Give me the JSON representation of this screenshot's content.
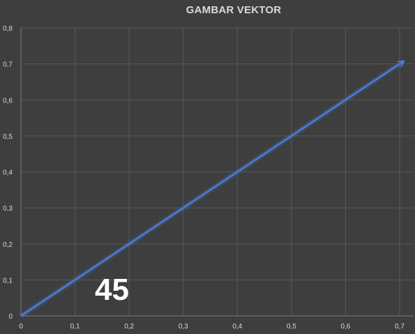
{
  "chart_data": {
    "type": "line",
    "title": "GAMBAR VEKTOR",
    "xlabel": "",
    "ylabel": "",
    "xlim": [
      0,
      0.7
    ],
    "ylim": [
      0,
      0.8
    ],
    "x_ticks": [
      "0",
      "0,1",
      "0,2",
      "0,3",
      "0,4",
      "0,5",
      "0,6",
      "0,7"
    ],
    "y_ticks": [
      "0",
      "0,1",
      "0,2",
      "0,3",
      "0,4",
      "0,5",
      "0,6",
      "0,7",
      "0,8"
    ],
    "grid": true,
    "series": [
      {
        "x": [
          0,
          0.707
        ],
        "y": [
          0,
          0.707
        ],
        "color": "#4472c4",
        "marker_end": "arrow"
      }
    ],
    "annotations": [
      {
        "text": "45"
      }
    ],
    "background": "#3e3e3e"
  }
}
